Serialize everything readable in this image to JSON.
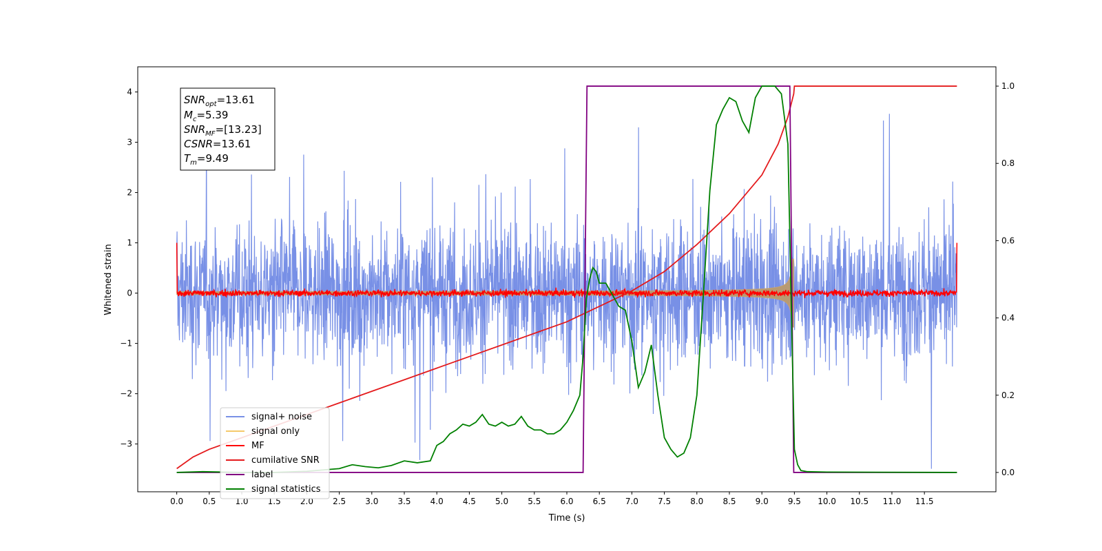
{
  "chart_data": {
    "type": "line",
    "title": "",
    "xlabel": "Time (s)",
    "ylabel": "Whitened strain",
    "xlim": [
      -0.6,
      12.6
    ],
    "ylim_left": [
      -3.95,
      4.5
    ],
    "ylim_right": [
      -0.05,
      1.05
    ],
    "x_ticks": [
      "0.0",
      "0.5",
      "1.0",
      "1.5",
      "2.0",
      "2.5",
      "3.0",
      "3.5",
      "4.0",
      "4.5",
      "5.0",
      "5.5",
      "6.0",
      "6.5",
      "7.0",
      "7.5",
      "8.0",
      "8.5",
      "9.0",
      "9.5",
      "10.0",
      "10.5",
      "11.0",
      "11.5"
    ],
    "y_ticks_left": [
      "−3",
      "−2",
      "−1",
      "0",
      "1",
      "2",
      "3",
      "4"
    ],
    "y_ticks_right": [
      "0.0",
      "0.2",
      "0.4",
      "0.6",
      "0.8",
      "1.0"
    ],
    "grid": false,
    "legend_position": "lower-left",
    "annotation": {
      "lines": [
        {
          "base": "SNR",
          "sub": "opt",
          "value": "=13.61"
        },
        {
          "base": "M",
          "sub": "c",
          "value": "=5.39"
        },
        {
          "base": "SNR",
          "sub": "MF",
          "value": "=[13.23]"
        },
        {
          "base": "CSNR",
          "sub": "",
          "value": "=13.61"
        },
        {
          "base": "T",
          "sub": "m",
          "value": "=9.49"
        }
      ]
    },
    "series": [
      {
        "name": "signal+ noise",
        "color": "#7890e6",
        "axis": "left",
        "kind": "noise",
        "x_range": [
          0.0,
          12.0
        ],
        "amplitude": 2.2
      },
      {
        "name": "signal only",
        "color": "#f5c96a",
        "axis": "left",
        "kind": "chirp",
        "x_range": [
          0.0,
          9.49
        ],
        "peak_amplitude": 0.68
      },
      {
        "name": "MF",
        "color": "#ff0000",
        "axis": "left",
        "kind": "noise",
        "x_range": [
          0.0,
          12.0
        ],
        "amplitude": 0.1,
        "edge_value": 1.0
      },
      {
        "name": "cumilative SNR",
        "color": "#e41a1c",
        "axis": "right",
        "x": [
          0.0,
          0.25,
          0.5,
          1.0,
          1.5,
          2.0,
          2.5,
          3.0,
          3.5,
          4.0,
          4.5,
          5.0,
          5.5,
          6.0,
          6.5,
          7.0,
          7.5,
          8.0,
          8.5,
          9.0,
          9.25,
          9.4,
          9.49,
          9.5,
          12.0
        ],
        "y": [
          0.01,
          0.04,
          0.06,
          0.09,
          0.12,
          0.15,
          0.18,
          0.21,
          0.24,
          0.27,
          0.3,
          0.33,
          0.36,
          0.39,
          0.43,
          0.47,
          0.52,
          0.59,
          0.67,
          0.77,
          0.85,
          0.92,
          0.98,
          1.0,
          1.0
        ]
      },
      {
        "name": "label",
        "color": "#800080",
        "axis": "right",
        "x": [
          0.0,
          6.25,
          6.31,
          9.43,
          9.49,
          12.0
        ],
        "y": [
          0.0,
          0.0,
          1.0,
          1.0,
          0.0,
          0.0
        ]
      },
      {
        "name": "signal statistics",
        "color": "#008000",
        "axis": "right",
        "x": [
          0.0,
          0.4,
          1.0,
          1.5,
          2.0,
          2.5,
          2.7,
          2.9,
          3.1,
          3.3,
          3.5,
          3.7,
          3.9,
          4.0,
          4.1,
          4.2,
          4.3,
          4.4,
          4.5,
          4.6,
          4.7,
          4.8,
          4.9,
          5.0,
          5.1,
          5.2,
          5.3,
          5.4,
          5.5,
          5.6,
          5.7,
          5.8,
          5.9,
          6.0,
          6.1,
          6.2,
          6.25,
          6.3,
          6.35,
          6.4,
          6.45,
          6.5,
          6.6,
          6.7,
          6.8,
          6.9,
          7.0,
          7.1,
          7.2,
          7.3,
          7.4,
          7.5,
          7.6,
          7.7,
          7.8,
          7.9,
          8.0,
          8.1,
          8.2,
          8.3,
          8.4,
          8.5,
          8.6,
          8.7,
          8.8,
          8.9,
          9.0,
          9.1,
          9.2,
          9.3,
          9.4,
          9.45,
          9.5,
          9.55,
          9.6,
          9.7,
          10.0,
          12.0
        ],
        "y": [
          0.0,
          0.002,
          0.0,
          0.0,
          0.003,
          0.01,
          0.02,
          0.015,
          0.012,
          0.018,
          0.03,
          0.025,
          0.03,
          0.07,
          0.08,
          0.1,
          0.11,
          0.125,
          0.12,
          0.13,
          0.15,
          0.125,
          0.12,
          0.13,
          0.12,
          0.125,
          0.145,
          0.12,
          0.11,
          0.11,
          0.1,
          0.1,
          0.11,
          0.13,
          0.16,
          0.2,
          0.3,
          0.45,
          0.5,
          0.53,
          0.52,
          0.49,
          0.49,
          0.46,
          0.43,
          0.42,
          0.34,
          0.22,
          0.26,
          0.33,
          0.2,
          0.09,
          0.06,
          0.04,
          0.05,
          0.09,
          0.2,
          0.46,
          0.73,
          0.9,
          0.94,
          0.97,
          0.96,
          0.91,
          0.88,
          0.97,
          1.0,
          1.0,
          1.0,
          0.98,
          0.85,
          0.45,
          0.06,
          0.02,
          0.005,
          0.002,
          0.001,
          0.0
        ]
      }
    ]
  }
}
